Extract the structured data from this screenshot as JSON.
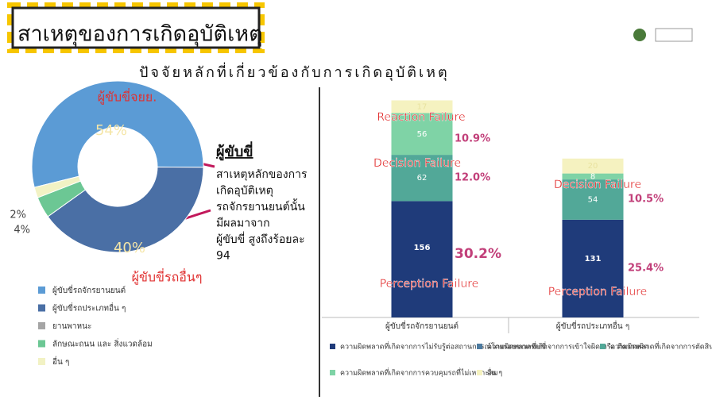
{
  "header": {
    "title": "สาเหตุของการเกิดอุบัติเหตุ",
    "subtitle": "ปัจจัยหลักที่เกี่ยวข้องกับการเกิดอุบัติเหตุ"
  },
  "chart_data": [
    {
      "type": "donut",
      "categories": [
        "ผู้ขับขี่รถจักรยานยนต์",
        "ผู้ขับขี่รถประเภทอื่น ๆ",
        "ยานพาหนะ",
        "ลักษณะถนน และ สิ่งแวดล้อม",
        "อื่น ๆ"
      ],
      "values": [
        54,
        40,
        0,
        4,
        2
      ],
      "value_labels": [
        "54%",
        "40%",
        null,
        "4%",
        "2%"
      ],
      "colors": [
        "#5b9bd5",
        "#4a6fa5",
        "#a5a5a5",
        "#6cc794",
        "#f2f2c4"
      ],
      "annotations": [
        "ผู้ขับขี่จยย.",
        "ผู้ขับขี่รถอื่นๆ"
      ],
      "callout": {
        "title": "ผู้ขับขี่",
        "lines": [
          "สาเหตุหลักของการ",
          "เกิดอุบัติเหตุ",
          "รถจักรยานยนต์นั้น",
          "มีผลมาจาก",
          "ผู้ขับขี่ สูงถึงร้อยละ",
          "94"
        ]
      }
    },
    {
      "type": "stacked-bar",
      "categories": [
        "ผู้ขับขี่รถจักรยานยนต์",
        "ผู้ขับขี่รถประเภทอื่น ๆ"
      ],
      "series": [
        {
          "name": "ความผิดพลาดที่เกิดจากการไม่รับรู้ต่อสถานการณ์โดยรอบขณะขับขี่",
          "color": "#1f3b7a",
          "values": [
            156,
            131
          ]
        },
        {
          "name": "ความผิดพลาดที่เกิดจากการเข้าใจผิด หรือ ตีความผิด",
          "color": "#4d7ba0",
          "values": [
            0,
            0
          ]
        },
        {
          "name": "ความผิดพลาดที่เกิดจากการตัดสินใจ",
          "color": "#52a898",
          "values": [
            62,
            54
          ]
        },
        {
          "name": "ความผิดพลาดที่เกิดจากการควบคุมรถที่ไม่เหมาะสม",
          "color": "#7fd3a6",
          "values": [
            56,
            8
          ]
        },
        {
          "name": "อื่น ๆ",
          "color": "#f5f2c0",
          "values": [
            17,
            20
          ]
        }
      ],
      "annotations": [
        "Reaction Failure",
        "Decision Failure",
        "Perception Failure",
        "Decision Failure",
        "Perception Failure"
      ],
      "percent_labels": [
        "10.9%",
        "12.0%",
        "30.2%",
        "10.5%",
        "25.4%"
      ]
    }
  ]
}
